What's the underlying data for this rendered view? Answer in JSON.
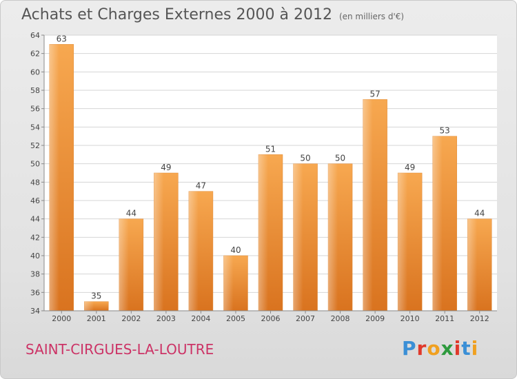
{
  "header": {
    "title": "Achats et Charges Externes 2000 à 2012",
    "subtitle": "(en milliers d'€)"
  },
  "footer": {
    "town": "SAINT-CIRGUES-LA-LOUTRE",
    "logo": [
      "P",
      "r",
      "o",
      "x",
      "i",
      "t",
      "i"
    ],
    "logo_colors": [
      "#3a8fd6",
      "#e0392b",
      "#f0a020",
      "#2e9a3e",
      "#e0392b",
      "#3a8fd6",
      "#f0a020"
    ]
  },
  "chart_data": {
    "type": "bar",
    "title": "Achats et Charges Externes 2000 à 2012",
    "subtitle": "(en milliers d'€)",
    "categories": [
      "2000",
      "2001",
      "2002",
      "2003",
      "2004",
      "2005",
      "2006",
      "2007",
      "2008",
      "2009",
      "2010",
      "2011",
      "2012"
    ],
    "values": [
      63,
      35,
      44,
      49,
      47,
      40,
      51,
      50,
      50,
      57,
      49,
      53,
      44
    ],
    "ylim": [
      34,
      64
    ],
    "yticks": [
      34,
      36,
      38,
      40,
      42,
      44,
      46,
      48,
      50,
      52,
      54,
      56,
      58,
      60,
      62,
      64
    ],
    "grid": true,
    "bar_color": "#f0923a"
  }
}
